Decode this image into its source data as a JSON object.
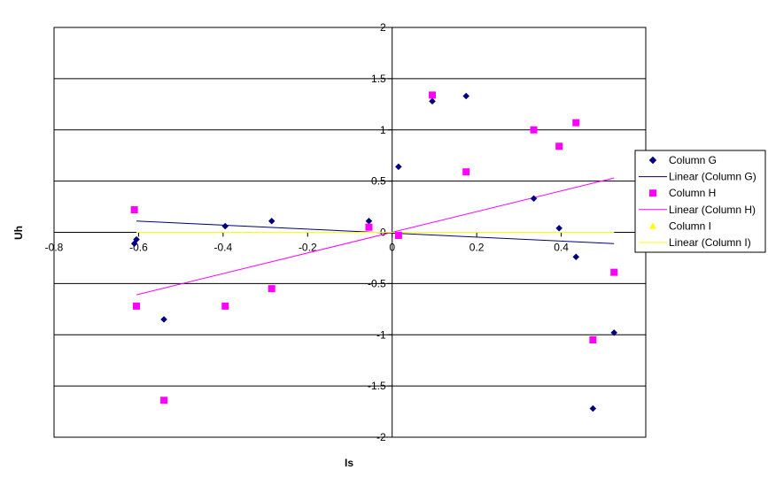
{
  "chart_data": {
    "type": "scatter",
    "xlabel": "Is",
    "ylabel": "Uh",
    "xlim": [
      -0.8,
      0.6
    ],
    "ylim": [
      -2,
      2
    ],
    "x_ticks": [
      -0.8,
      -0.6,
      -0.4,
      -0.2,
      0,
      0.2,
      0.4
    ],
    "x_tick_labels": [
      "-0.8",
      "-0.6",
      "-0.4",
      "-0.2",
      "0",
      "0.2",
      "0.4"
    ],
    "y_ticks": [
      -2,
      -1.5,
      -1,
      -0.5,
      0,
      0.5,
      1,
      1.5,
      2
    ],
    "y_tick_labels": [
      "-2",
      "-1.5",
      "-1",
      "-0.5",
      "0",
      "0.5",
      "1",
      "1.5",
      "2"
    ],
    "grid": "horizontal",
    "legend_position": "right",
    "series": [
      {
        "name": "Column G",
        "marker": "diamond",
        "color": "#000080",
        "points": [
          [
            -0.61,
            -0.11
          ],
          [
            -0.605,
            -0.07
          ],
          [
            -0.54,
            -0.85
          ],
          [
            -0.395,
            0.06
          ],
          [
            -0.285,
            0.11
          ],
          [
            -0.055,
            0.11
          ],
          [
            0.015,
            0.64
          ],
          [
            0.095,
            1.28
          ],
          [
            0.175,
            1.33
          ],
          [
            0.335,
            0.33
          ],
          [
            0.395,
            0.04
          ],
          [
            0.435,
            -0.24
          ],
          [
            0.475,
            -1.72
          ],
          [
            0.525,
            -0.98
          ]
        ]
      },
      {
        "name": "Column H",
        "marker": "square",
        "color": "#FF00FF",
        "points": [
          [
            -0.61,
            0.22
          ],
          [
            -0.605,
            -0.72
          ],
          [
            -0.54,
            -1.64
          ],
          [
            -0.395,
            -0.72
          ],
          [
            -0.285,
            -0.55
          ],
          [
            -0.055,
            0.05
          ],
          [
            0.015,
            -0.03
          ],
          [
            0.095,
            1.34
          ],
          [
            0.175,
            0.59
          ],
          [
            0.335,
            1.0
          ],
          [
            0.395,
            0.84
          ],
          [
            0.435,
            1.07
          ],
          [
            0.475,
            -1.05
          ],
          [
            0.525,
            -0.39
          ]
        ]
      },
      {
        "name": "Column I",
        "marker": "triangle",
        "color": "#FFFF00",
        "points": []
      }
    ],
    "trendlines": [
      {
        "name": "Linear (Column G)",
        "color": "#000080",
        "x": [
          -0.605,
          0.525
        ],
        "y": [
          0.11,
          -0.11
        ]
      },
      {
        "name": "Linear (Column H)",
        "color": "#FF00FF",
        "x": [
          -0.605,
          0.525
        ],
        "y": [
          -0.61,
          0.53
        ]
      },
      {
        "name": "Linear (Column I)",
        "color": "#FFFF00",
        "x": [
          -0.605,
          0.525
        ],
        "y": [
          0,
          0
        ]
      }
    ],
    "legend": [
      {
        "label": "Column G",
        "kind": "marker",
        "marker": "diamond",
        "color": "#000080"
      },
      {
        "label": "Linear (Column G)",
        "kind": "line",
        "color": "#000080"
      },
      {
        "label": "Column H",
        "kind": "marker",
        "marker": "square",
        "color": "#FF00FF"
      },
      {
        "label": "Linear (Column H)",
        "kind": "line",
        "color": "#FF00FF"
      },
      {
        "label": "Column I",
        "kind": "marker",
        "marker": "triangle",
        "color": "#FFFF00"
      },
      {
        "label": "Linear (Column I)",
        "kind": "line",
        "color": "#FFFF00"
      }
    ]
  }
}
